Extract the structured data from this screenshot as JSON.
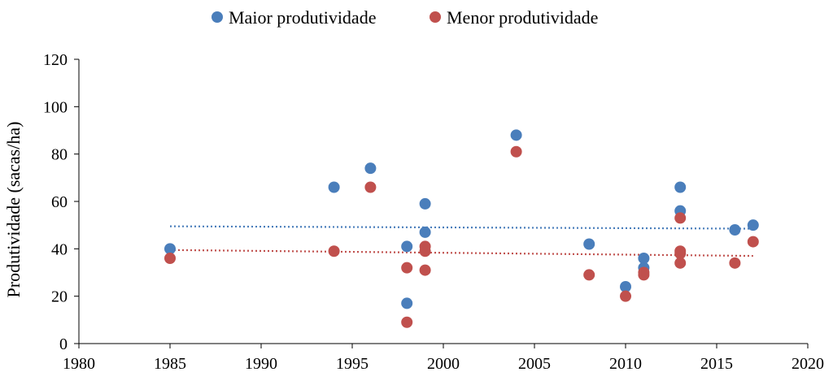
{
  "chart_data": {
    "type": "scatter",
    "title": "",
    "xlabel": "",
    "ylabel": "Produtividade (sacas/ha)",
    "xlim": [
      1980,
      2020
    ],
    "ylim": [
      0,
      120
    ],
    "xticks": [
      "1980",
      "1985",
      "1990",
      "1995",
      "2000",
      "2005",
      "2010",
      "2015",
      "2020"
    ],
    "yticks": [
      "0",
      "20",
      "40",
      "60",
      "80",
      "100",
      "120"
    ],
    "grid": false,
    "legend_position": "top",
    "series": [
      {
        "name": "Maior produtividade",
        "color": "#4a7ebb",
        "points": [
          [
            1985,
            40
          ],
          [
            1994,
            66
          ],
          [
            1996,
            74
          ],
          [
            1998,
            41
          ],
          [
            1998,
            17
          ],
          [
            1999,
            59
          ],
          [
            1999,
            47
          ],
          [
            2004,
            88
          ],
          [
            2008,
            42
          ],
          [
            2010,
            24
          ],
          [
            2011,
            36
          ],
          [
            2011,
            32
          ],
          [
            2013,
            66
          ],
          [
            2013,
            56
          ],
          [
            2016,
            48
          ],
          [
            2017,
            50
          ]
        ],
        "trendline": {
          "style": "dotted",
          "x": [
            1985,
            2017
          ],
          "y": [
            49.5,
            48.5
          ]
        }
      },
      {
        "name": "Menor produtividade",
        "color": "#c0504d",
        "points": [
          [
            1985,
            36
          ],
          [
            1994,
            39
          ],
          [
            1996,
            66
          ],
          [
            1998,
            32
          ],
          [
            1998,
            9
          ],
          [
            1999,
            41
          ],
          [
            1999,
            39
          ],
          [
            1999,
            31
          ],
          [
            2004,
            81
          ],
          [
            2008,
            29
          ],
          [
            2010,
            20
          ],
          [
            2011,
            30
          ],
          [
            2011,
            29
          ],
          [
            2013,
            53
          ],
          [
            2013,
            39
          ],
          [
            2013,
            38
          ],
          [
            2013,
            34
          ],
          [
            2016,
            34
          ],
          [
            2017,
            43
          ]
        ],
        "trendline": {
          "style": "dotted",
          "x": [
            1985,
            2017
          ],
          "y": [
            39.5,
            37
          ]
        }
      }
    ]
  }
}
